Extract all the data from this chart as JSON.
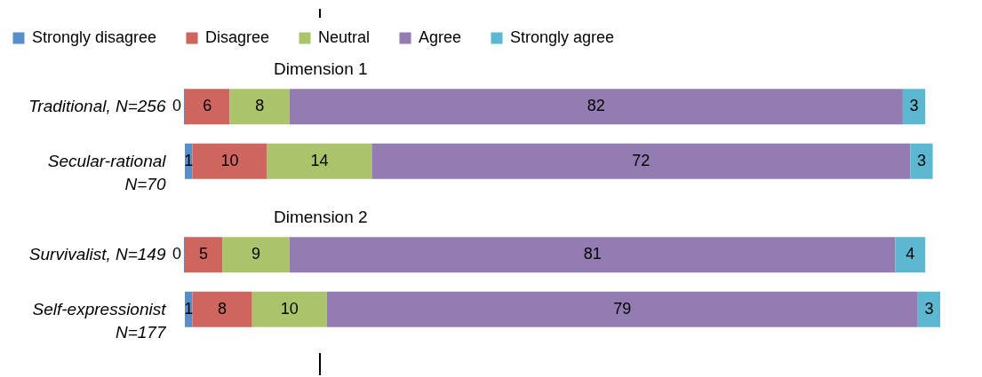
{
  "chart_data": [
    {
      "type": "bar",
      "orientation": "horizontal",
      "stacked": true,
      "title": "Dimension 1",
      "categories": [
        "Traditional, N=256",
        "Secular-rational N=70"
      ],
      "series": [
        {
          "name": "Strongly disagree",
          "color": "#5a8ec9",
          "values": [
            0,
            1
          ]
        },
        {
          "name": "Disagree",
          "color": "#cf655f",
          "values": [
            6,
            10
          ]
        },
        {
          "name": "Neutral",
          "color": "#abc46c",
          "values": [
            8,
            14
          ]
        },
        {
          "name": "Agree",
          "color": "#937cb1",
          "values": [
            82,
            72
          ]
        },
        {
          "name": "Strongly agree",
          "color": "#5bb8d0",
          "values": [
            3,
            3
          ]
        }
      ],
      "data_labels": true,
      "legend": "top",
      "tick_labels": "y"
    },
    {
      "type": "bar",
      "orientation": "horizontal",
      "stacked": true,
      "title": "Dimension 2",
      "categories": [
        "Survivalist, N=149",
        "Self-expressionist N=177"
      ],
      "series": [
        {
          "color": "#5a8ec9",
          "values": [
            0,
            1
          ]
        },
        {
          "color": "#cf655f",
          "values": [
            5,
            8
          ]
        },
        {
          "color": "#abc46c",
          "values": [
            9,
            10
          ]
        },
        {
          "color": "#937cb1",
          "values": [
            81,
            79
          ]
        },
        {
          "color": "#5bb8d0",
          "values": [
            4,
            3
          ]
        }
      ],
      "data_labels": true,
      "tick_labels": "y"
    }
  ]
}
